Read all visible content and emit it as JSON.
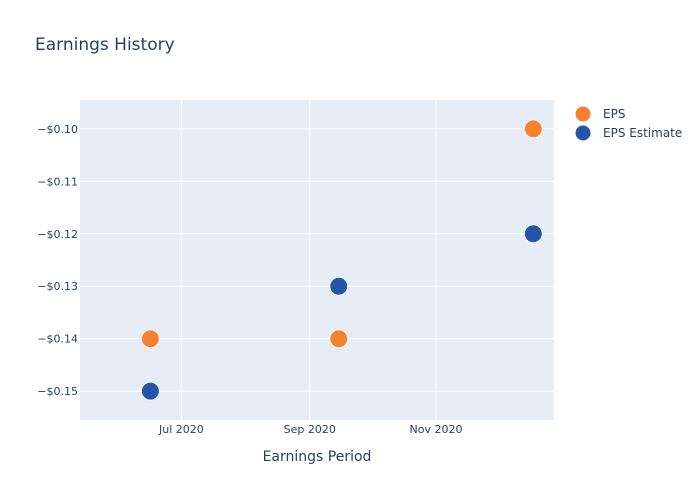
{
  "chart_data": {
    "type": "scatter",
    "title": "Earnings History",
    "xlabel": "Earnings Period",
    "ylabel": "",
    "x_ticks": [
      {
        "date": "2020-07-01",
        "label": "Jul 2020"
      },
      {
        "date": "2020-09-01",
        "label": "Sep 2020"
      },
      {
        "date": "2020-11-01",
        "label": "Nov 2020"
      }
    ],
    "y_ticks": [
      -0.15,
      -0.14,
      -0.13,
      -0.12,
      -0.11,
      -0.1
    ],
    "y_tick_labels": [
      "−$0.15",
      "−$0.14",
      "−$0.13",
      "−$0.12",
      "−$0.11",
      "−$0.10"
    ],
    "xlim": [
      "2020-05-13",
      "2020-12-28"
    ],
    "ylim": [
      -0.1555,
      -0.0945
    ],
    "grid": true,
    "legend": "top-right",
    "series": [
      {
        "name": "EPS",
        "color": "#f58231",
        "points": [
          {
            "x": "2020-06-16",
            "y": -0.14
          },
          {
            "x": "2020-09-15",
            "y": -0.14
          },
          {
            "x": "2020-12-18",
            "y": -0.1
          }
        ]
      },
      {
        "name": "EPS Estimate",
        "color": "#2356a8",
        "points": [
          {
            "x": "2020-06-16",
            "y": -0.15
          },
          {
            "x": "2020-09-15",
            "y": -0.13
          },
          {
            "x": "2020-12-18",
            "y": -0.12
          }
        ]
      }
    ]
  }
}
